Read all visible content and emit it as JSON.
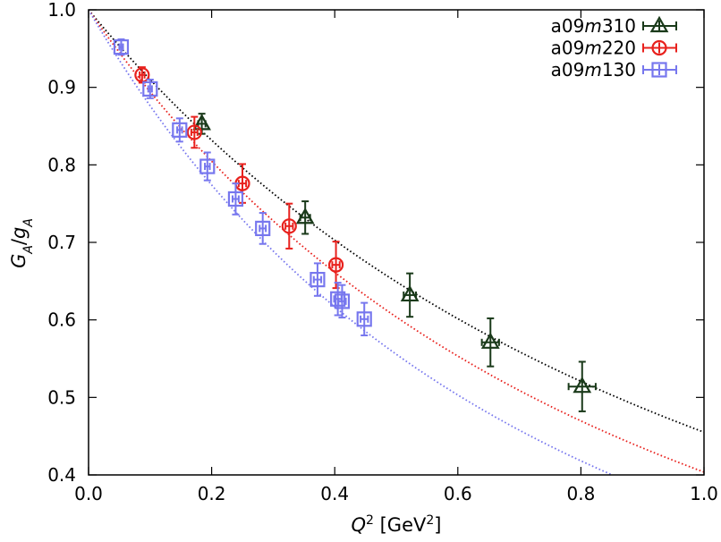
{
  "chart_data": {
    "type": "scatter",
    "xlim": [
      0.0,
      1.0
    ],
    "ylim": [
      0.4,
      1.0
    ],
    "xticks": [
      0.0,
      0.2,
      0.4,
      0.6,
      0.8,
      1.0
    ],
    "yticks": [
      0.4,
      0.5,
      0.6,
      0.7,
      0.8,
      0.9,
      1.0
    ],
    "xtick_labels": [
      "0.0",
      "0.2",
      "0.4",
      "0.6",
      "0.8",
      "1.0"
    ],
    "ytick_labels": [
      "0.4",
      "0.5",
      "0.6",
      "0.7",
      "0.8",
      "0.9",
      "1.0"
    ],
    "xlabel": {
      "base": "Q",
      "sup": "2",
      "unit_pre": " [GeV",
      "unit_sup": "2",
      "unit_post": "]"
    },
    "ylabel": {
      "num": "G",
      "num_sub": "A",
      "slash": "/",
      "den": "g",
      "den_sub": "A"
    },
    "grid": false,
    "legend_position": "top-right",
    "series": [
      {
        "name": {
          "pre": "a09",
          "italic": "m",
          "post": "310"
        },
        "marker": "triangle",
        "color": "#1a3a1a",
        "fit_color": "#000000",
        "fit_mass": 1.44,
        "points": [
          {
            "x": 0.184,
            "y": 0.853,
            "xerr": 0.006,
            "yerr": 0.013
          },
          {
            "x": 0.352,
            "y": 0.732,
            "xerr": 0.008,
            "yerr": 0.021
          },
          {
            "x": 0.522,
            "y": 0.632,
            "xerr": 0.01,
            "yerr": 0.028
          },
          {
            "x": 0.653,
            "y": 0.571,
            "xerr": 0.014,
            "yerr": 0.031
          },
          {
            "x": 0.802,
            "y": 0.514,
            "xerr": 0.022,
            "yerr": 0.032
          }
        ]
      },
      {
        "name": {
          "pre": "a09",
          "italic": "m",
          "post": "220"
        },
        "marker": "circle",
        "color": "#e8211d",
        "fit_color": "#e8211d",
        "fit_mass": 1.32,
        "points": [
          {
            "x": 0.087,
            "y": 0.916,
            "xerr": 0.004,
            "yerr": 0.01
          },
          {
            "x": 0.172,
            "y": 0.842,
            "xerr": 0.005,
            "yerr": 0.02
          },
          {
            "x": 0.25,
            "y": 0.776,
            "xerr": 0.006,
            "yerr": 0.025
          },
          {
            "x": 0.326,
            "y": 0.721,
            "xerr": 0.006,
            "yerr": 0.029
          },
          {
            "x": 0.402,
            "y": 0.671,
            "xerr": 0.006,
            "yerr": 0.03
          }
        ]
      },
      {
        "name": {
          "pre": "a09",
          "italic": "m",
          "post": "130"
        },
        "marker": "square",
        "color": "#7777ee",
        "fit_color": "#7777ee",
        "fit_mass": 1.21,
        "points": [
          {
            "x": 0.053,
            "y": 0.952,
            "xerr": 0.003,
            "yerr": 0.01
          },
          {
            "x": 0.1,
            "y": 0.898,
            "xerr": 0.003,
            "yerr": 0.012
          },
          {
            "x": 0.148,
            "y": 0.845,
            "xerr": 0.004,
            "yerr": 0.015
          },
          {
            "x": 0.193,
            "y": 0.798,
            "xerr": 0.004,
            "yerr": 0.018
          },
          {
            "x": 0.239,
            "y": 0.756,
            "xerr": 0.005,
            "yerr": 0.02
          },
          {
            "x": 0.283,
            "y": 0.718,
            "xerr": 0.005,
            "yerr": 0.02
          },
          {
            "x": 0.372,
            "y": 0.652,
            "xerr": 0.006,
            "yerr": 0.021
          },
          {
            "x": 0.405,
            "y": 0.627,
            "xerr": 0.006,
            "yerr": 0.021
          },
          {
            "x": 0.412,
            "y": 0.624,
            "xerr": 0.006,
            "yerr": 0.021
          },
          {
            "x": 0.448,
            "y": 0.601,
            "xerr": 0.006,
            "yerr": 0.021
          }
        ]
      }
    ]
  }
}
